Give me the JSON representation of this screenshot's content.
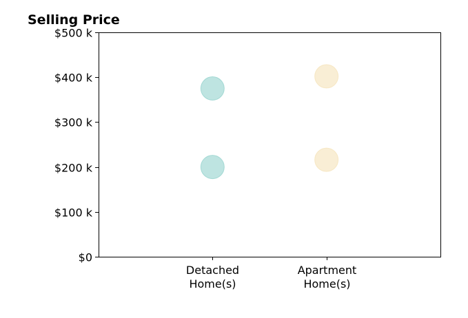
{
  "chart_data": {
    "type": "scatter",
    "title": "Selling Price",
    "xlabel": "",
    "ylabel": "",
    "ylim": [
      0,
      500
    ],
    "yticks": [
      0,
      100,
      200,
      300,
      400,
      500
    ],
    "ytick_labels": [
      "$0",
      "$100 k",
      "$200 k",
      "$300 k",
      "$400 k",
      "$500 k"
    ],
    "xlim": [
      0,
      3
    ],
    "categories": [
      {
        "x": 1,
        "label_lines": [
          "Detached",
          "Home(s)"
        ]
      },
      {
        "x": 2,
        "label_lines": [
          "Apartment",
          "Home(s)"
        ]
      }
    ],
    "series": [
      {
        "category_x": 1,
        "color": "#7ec9c3",
        "points": [
          {
            "x": 1,
            "y": 375
          },
          {
            "x": 1,
            "y": 200
          }
        ]
      },
      {
        "category_x": 2,
        "color": "#f3deac",
        "points": [
          {
            "x": 2,
            "y": 402
          },
          {
            "x": 2,
            "y": 216
          }
        ]
      }
    ],
    "grid": false,
    "legend": "none"
  }
}
